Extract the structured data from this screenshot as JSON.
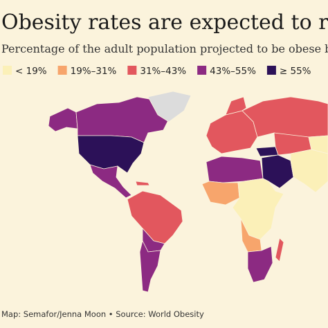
{
  "header": {
    "title": "Obesity rates are expected to rise",
    "subtitle": "Percentage of the adult population projected to be obese by"
  },
  "legend": {
    "items": [
      {
        "label": "< 19%",
        "color": "#fbf0b8"
      },
      {
        "label": "19%–31%",
        "color": "#f7a56c"
      },
      {
        "label": "31%–43%",
        "color": "#e2575e"
      },
      {
        "label": "43%–55%",
        "color": "#8c2a82"
      },
      {
        "label": "≥ 55%",
        "color": "#2c1158"
      }
    ]
  },
  "no_data_color": "#dcdcdc",
  "footer": {
    "source": "Map: Semafor/Jenna Moon • Source: World Obesity"
  }
}
